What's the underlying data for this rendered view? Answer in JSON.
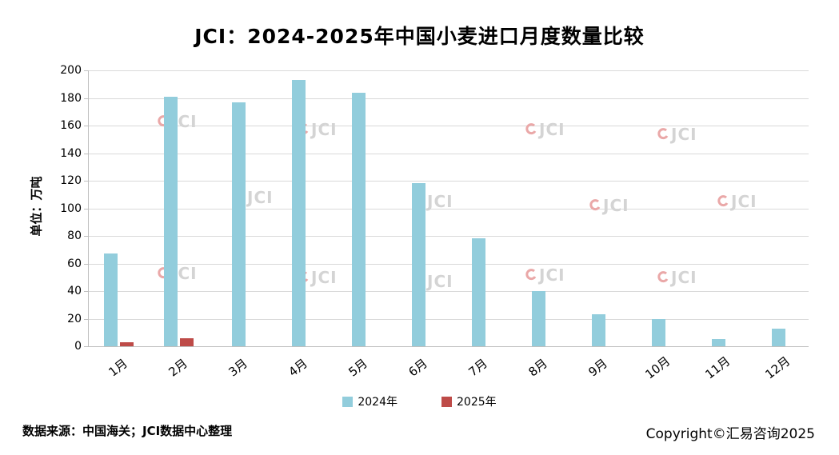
{
  "title": "JCI：2024-2025年中国小麦进口月度数量比较",
  "y_axis_label": "单位：万吨",
  "footer": {
    "source": "数据来源：中国海关；JCI数据中心整理",
    "copyright": "Copyright©汇易咨询2025"
  },
  "watermark": {
    "text": "JCI",
    "swirl_color": "#eaa8a8"
  },
  "colors": {
    "series_2024": "#92CDDC",
    "series_2025": "#BE4B48",
    "gridline": "#d9d9d9"
  },
  "chart_data": {
    "type": "bar",
    "title": "JCI：2024-2025年中国小麦进口月度数量比较",
    "ylabel": "单位：万吨",
    "categories": [
      "1月",
      "2月",
      "3月",
      "4月",
      "5月",
      "6月",
      "7月",
      "8月",
      "9月",
      "10月",
      "11月",
      "12月"
    ],
    "series": [
      {
        "name": "2024年",
        "color": "#92CDDC",
        "values": [
          67,
          181,
          177,
          193,
          184,
          118,
          78,
          40,
          23,
          20,
          5,
          13
        ]
      },
      {
        "name": "2025年",
        "color": "#BE4B48",
        "values": [
          3,
          6,
          0,
          0,
          0,
          0,
          0,
          0,
          0,
          0,
          0,
          0
        ]
      }
    ],
    "ylim": [
      0,
      200
    ],
    "ytick_step": 20,
    "grid": true,
    "legend_position": "bottom"
  }
}
